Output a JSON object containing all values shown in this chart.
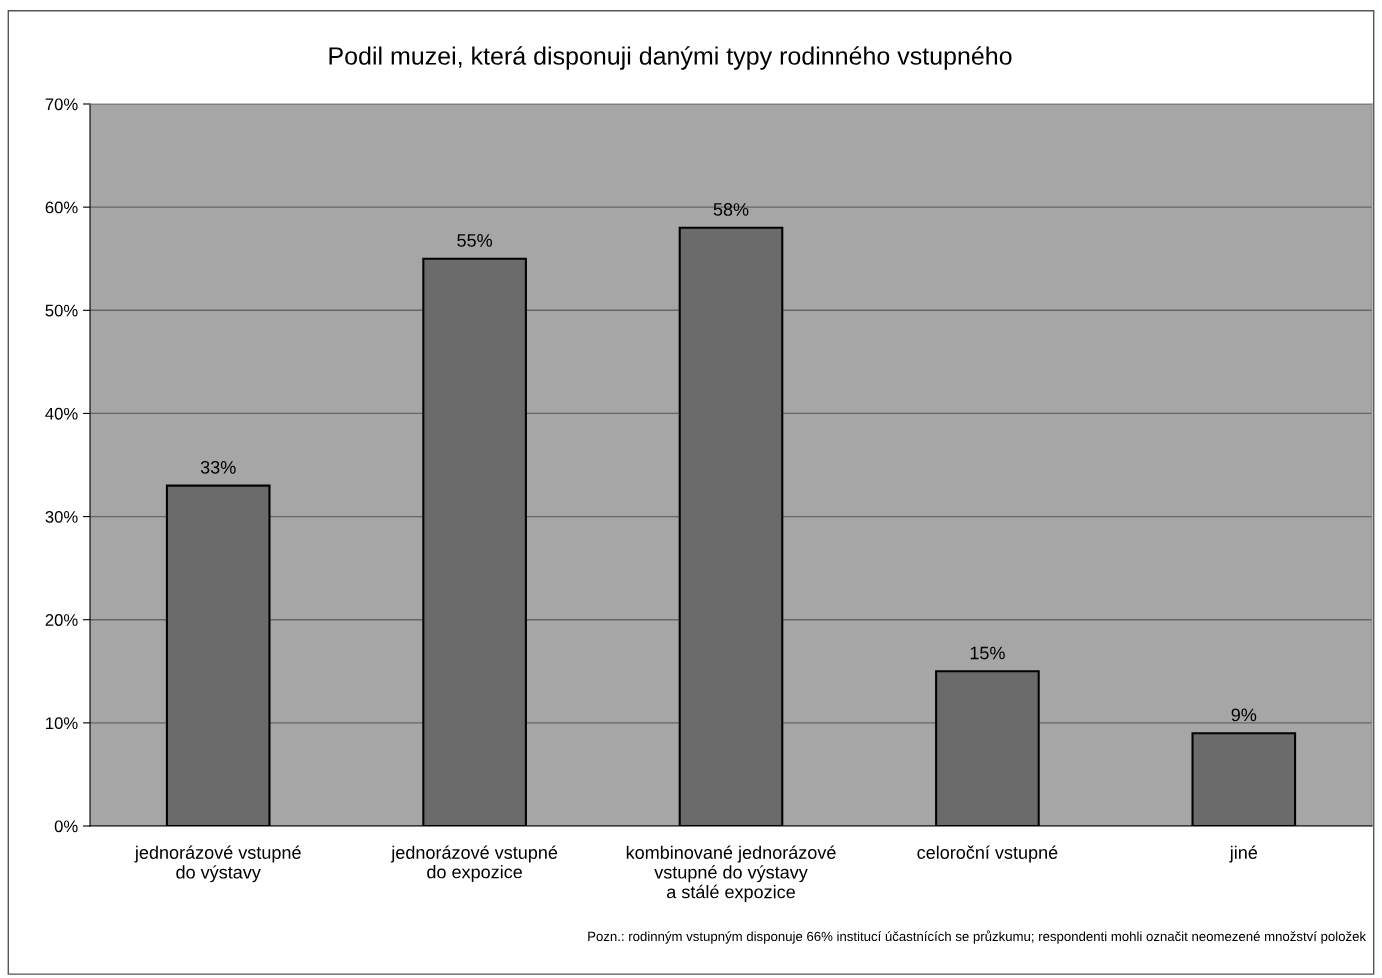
{
  "chart_data": {
    "type": "bar",
    "title": "Podil muzei, která disponuji danými typy rodinného vstupného",
    "categories": [
      "jednorázové vstupné\ndo výstavy",
      "jednorázové vstupné\ndo expozice",
      "kombinované jednorázové\nvstupné do výstavy\na stálé expozice",
      "celoroční vstupné",
      "jiné"
    ],
    "values": [
      33,
      55,
      58,
      15,
      9
    ],
    "value_labels": [
      "33%",
      "55%",
      "58%",
      "15%",
      "9%"
    ],
    "color": "#6b6b6b",
    "ylim": [
      0,
      70
    ],
    "yticks": [
      {
        "value": 0,
        "label": "0%"
      },
      {
        "value": 10,
        "label": "10%"
      },
      {
        "value": 20,
        "label": "20%"
      },
      {
        "value": 30,
        "label": "30%"
      },
      {
        "value": 40,
        "label": "40%"
      },
      {
        "value": 50,
        "label": "50%"
      },
      {
        "value": 60,
        "label": "60%"
      },
      {
        "value": 70,
        "label": "70%"
      }
    ],
    "grid": "y",
    "annotations": [
      "Pozn.: rodinným vstupným disponuje 66% institucí účastnících se průzkumu; respondenti mohli označit neomezené množství položek"
    ]
  }
}
